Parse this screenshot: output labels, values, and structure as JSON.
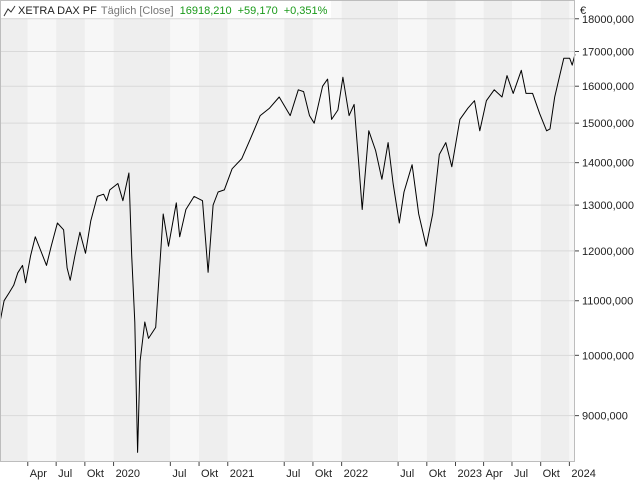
{
  "header": {
    "instrument": "XETRA DAX PF",
    "interval": "Täglich [Close]",
    "last": "16918,210",
    "change": "+59,170",
    "change_pct": "+0,351%"
  },
  "currency": "€",
  "colors": {
    "positive": "#1a9a1a",
    "line": "#000000",
    "grid": "#d9d9d9",
    "band_light": "#f7f7f7",
    "band_dark": "#eeeeee"
  },
  "chart_data": {
    "type": "line",
    "title": "",
    "xlabel": "",
    "ylabel": "",
    "y_scale": "log",
    "ylim": [
      8300,
      18600
    ],
    "xlim": [
      "2019-01-02",
      "2024-01-19"
    ],
    "grid": true,
    "y_ticks": [
      {
        "value": 9000,
        "label": "9000,000"
      },
      {
        "value": 10000,
        "label": "10000,000"
      },
      {
        "value": 11000,
        "label": "11000,000"
      },
      {
        "value": 12000,
        "label": "12000,000"
      },
      {
        "value": 13000,
        "label": "13000,000"
      },
      {
        "value": 14000,
        "label": "14000,000"
      },
      {
        "value": 15000,
        "label": "15000,000"
      },
      {
        "value": 16000,
        "label": "16000,000"
      },
      {
        "value": 17000,
        "label": "17000,000"
      },
      {
        "value": 18000,
        "label": "18000,000"
      }
    ],
    "x_ticks": [
      {
        "date": "2019-04-01",
        "label": "Apr"
      },
      {
        "date": "2019-07-01",
        "label": "Jul"
      },
      {
        "date": "2019-10-01",
        "label": "Okt"
      },
      {
        "date": "2020-01-01",
        "label": "2020"
      },
      {
        "date": "2020-07-01",
        "label": "Jul"
      },
      {
        "date": "2020-10-01",
        "label": "Okt"
      },
      {
        "date": "2021-01-01",
        "label": "2021"
      },
      {
        "date": "2021-07-01",
        "label": "Jul"
      },
      {
        "date": "2021-10-01",
        "label": "Okt"
      },
      {
        "date": "2022-01-01",
        "label": "2022"
      },
      {
        "date": "2022-07-01",
        "label": "Jul"
      },
      {
        "date": "2022-10-01",
        "label": "Okt"
      },
      {
        "date": "2023-01-01",
        "label": "2023"
      },
      {
        "date": "2023-04-01",
        "label": "Apr"
      },
      {
        "date": "2023-07-01",
        "label": "Jul"
      },
      {
        "date": "2023-10-01",
        "label": "Okt"
      },
      {
        "date": "2024-01-01",
        "label": "2024"
      }
    ],
    "series": [
      {
        "name": "",
        "points": [
          [
            "2019-01-02",
            10600
          ],
          [
            "2019-01-15",
            11000
          ],
          [
            "2019-01-31",
            11150
          ],
          [
            "2019-02-15",
            11300
          ],
          [
            "2019-02-28",
            11550
          ],
          [
            "2019-03-15",
            11700
          ],
          [
            "2019-03-25",
            11350
          ],
          [
            "2019-04-10",
            11900
          ],
          [
            "2019-04-25",
            12300
          ],
          [
            "2019-05-10",
            12050
          ],
          [
            "2019-05-31",
            11700
          ],
          [
            "2019-06-15",
            12100
          ],
          [
            "2019-07-05",
            12600
          ],
          [
            "2019-07-25",
            12450
          ],
          [
            "2019-08-05",
            11650
          ],
          [
            "2019-08-15",
            11400
          ],
          [
            "2019-08-30",
            11900
          ],
          [
            "2019-09-15",
            12400
          ],
          [
            "2019-10-03",
            11950
          ],
          [
            "2019-10-20",
            12650
          ],
          [
            "2019-11-10",
            13200
          ],
          [
            "2019-11-30",
            13250
          ],
          [
            "2019-12-10",
            13100
          ],
          [
            "2019-12-20",
            13350
          ],
          [
            "2020-01-15",
            13500
          ],
          [
            "2020-01-31",
            13100
          ],
          [
            "2020-02-19",
            13750
          ],
          [
            "2020-02-28",
            11900
          ],
          [
            "2020-03-09",
            10600
          ],
          [
            "2020-03-18",
            8440
          ],
          [
            "2020-03-26",
            9900
          ],
          [
            "2020-04-10",
            10600
          ],
          [
            "2020-04-22",
            10300
          ],
          [
            "2020-05-15",
            10500
          ],
          [
            "2020-06-08",
            12800
          ],
          [
            "2020-06-25",
            12100
          ],
          [
            "2020-07-20",
            13050
          ],
          [
            "2020-07-31",
            12300
          ],
          [
            "2020-08-20",
            12900
          ],
          [
            "2020-09-15",
            13200
          ],
          [
            "2020-10-12",
            13100
          ],
          [
            "2020-10-30",
            11560
          ],
          [
            "2020-11-15",
            13000
          ],
          [
            "2020-12-01",
            13300
          ],
          [
            "2020-12-21",
            13350
          ],
          [
            "2021-01-15",
            13850
          ],
          [
            "2021-02-15",
            14100
          ],
          [
            "2021-03-15",
            14600
          ],
          [
            "2021-04-15",
            15200
          ],
          [
            "2021-05-15",
            15400
          ],
          [
            "2021-06-15",
            15700
          ],
          [
            "2021-07-20",
            15200
          ],
          [
            "2021-08-15",
            15900
          ],
          [
            "2021-09-01",
            15850
          ],
          [
            "2021-09-20",
            15200
          ],
          [
            "2021-10-05",
            15000
          ],
          [
            "2021-11-01",
            16000
          ],
          [
            "2021-11-17",
            16200
          ],
          [
            "2021-11-30",
            15100
          ],
          [
            "2021-12-20",
            15350
          ],
          [
            "2022-01-05",
            16250
          ],
          [
            "2022-01-25",
            15200
          ],
          [
            "2022-02-10",
            15500
          ],
          [
            "2022-02-24",
            14050
          ],
          [
            "2022-03-08",
            12900
          ],
          [
            "2022-03-29",
            14800
          ],
          [
            "2022-04-20",
            14300
          ],
          [
            "2022-05-10",
            13600
          ],
          [
            "2022-05-30",
            14500
          ],
          [
            "2022-06-15",
            13500
          ],
          [
            "2022-07-05",
            12600
          ],
          [
            "2022-07-20",
            13300
          ],
          [
            "2022-08-15",
            13950
          ],
          [
            "2022-09-05",
            12800
          ],
          [
            "2022-09-29",
            12100
          ],
          [
            "2022-10-20",
            12800
          ],
          [
            "2022-11-10",
            14200
          ],
          [
            "2022-12-01",
            14500
          ],
          [
            "2022-12-20",
            13900
          ],
          [
            "2023-01-15",
            15100
          ],
          [
            "2023-02-10",
            15400
          ],
          [
            "2023-03-03",
            15600
          ],
          [
            "2023-03-20",
            14800
          ],
          [
            "2023-04-10",
            15600
          ],
          [
            "2023-05-05",
            15900
          ],
          [
            "2023-05-30",
            15700
          ],
          [
            "2023-06-15",
            16300
          ],
          [
            "2023-07-05",
            15800
          ],
          [
            "2023-07-31",
            16450
          ],
          [
            "2023-08-15",
            15800
          ],
          [
            "2023-09-05",
            15800
          ],
          [
            "2023-09-28",
            15250
          ],
          [
            "2023-10-20",
            14800
          ],
          [
            "2023-10-31",
            14850
          ],
          [
            "2023-11-15",
            15700
          ],
          [
            "2023-12-01",
            16300
          ],
          [
            "2023-12-14",
            16800
          ],
          [
            "2024-01-02",
            16800
          ],
          [
            "2024-01-10",
            16600
          ],
          [
            "2024-01-19",
            16918
          ]
        ]
      }
    ]
  }
}
